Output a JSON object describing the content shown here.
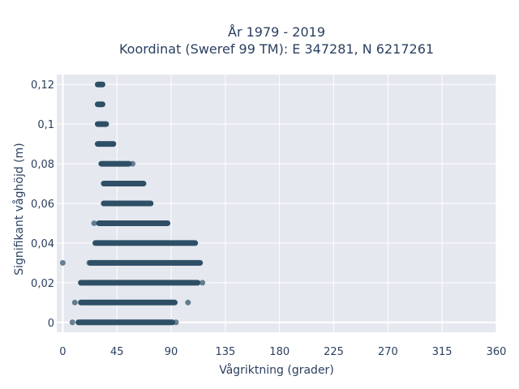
{
  "chart_data": {
    "type": "scatter",
    "title_line1": "År 1979 - 2019",
    "title_line2": "Koordinat (Sweref 99 TM): E 347281, N 6217261",
    "xlabel": "Vågriktning (grader)",
    "ylabel": "Signifikant våghöjd (m)",
    "xlim": [
      -5,
      360
    ],
    "ylim": [
      -0.005,
      0.125
    ],
    "x_ticks": [
      0,
      45,
      90,
      135,
      180,
      225,
      270,
      315,
      360
    ],
    "x_tick_labels": [
      "0",
      "45",
      "90",
      "135",
      "180",
      "225",
      "270",
      "315",
      "360"
    ],
    "y_ticks": [
      0,
      0.02,
      0.04,
      0.06,
      0.08,
      0.1,
      0.12
    ],
    "y_tick_labels": [
      "0",
      "0,02",
      "0,04",
      "0,06",
      "0,08",
      "0,1",
      "0,12"
    ],
    "grid": true,
    "marker_color": "#2e4f66",
    "plot_background": "#e5e8ef",
    "bands": [
      {
        "y": 0.12,
        "x_min": 29,
        "x_max": 33
      },
      {
        "y": 0.11,
        "x_min": 29,
        "x_max": 33
      },
      {
        "y": 0.1,
        "x_min": 29,
        "x_max": 36
      },
      {
        "y": 0.09,
        "x_min": 29,
        "x_max": 42
      },
      {
        "y": 0.08,
        "x_min": 32,
        "x_max": 55
      },
      {
        "y": 0.07,
        "x_min": 34,
        "x_max": 67
      },
      {
        "y": 0.06,
        "x_min": 34,
        "x_max": 73
      },
      {
        "y": 0.05,
        "x_min": 30,
        "x_max": 87
      },
      {
        "y": 0.04,
        "x_min": 27,
        "x_max": 110
      },
      {
        "y": 0.03,
        "x_min": 23,
        "x_max": 114
      },
      {
        "y": 0.02,
        "x_min": 15,
        "x_max": 112
      },
      {
        "y": 0.01,
        "x_min": 15,
        "x_max": 93
      },
      {
        "y": 0.0,
        "x_min": 13,
        "x_max": 91
      }
    ],
    "outliers": [
      {
        "x": 0,
        "y": 0.03
      },
      {
        "x": 22,
        "y": 0.03
      },
      {
        "x": 26,
        "y": 0.05
      },
      {
        "x": 38,
        "y": 0.05
      },
      {
        "x": 58,
        "y": 0.08
      },
      {
        "x": 10,
        "y": 0.01
      },
      {
        "x": 104,
        "y": 0.01
      },
      {
        "x": 8,
        "y": 0.0
      },
      {
        "x": 94,
        "y": 0.0
      },
      {
        "x": 116,
        "y": 0.02
      }
    ]
  }
}
